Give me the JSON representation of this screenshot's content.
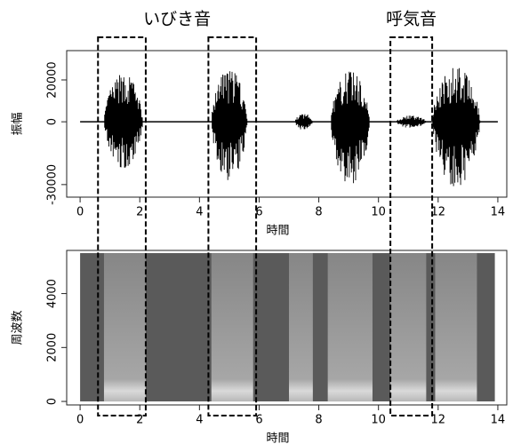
{
  "chart_data": [
    {
      "type": "waveform",
      "ylabel": "振幅",
      "xlabel": "時間",
      "xlim": [
        -0.45,
        14.3
      ],
      "xticks": [
        0,
        2,
        4,
        6,
        8,
        10,
        12,
        14
      ],
      "ylim": [
        -36000,
        34000
      ],
      "yticks": [
        -30000,
        0,
        20000
      ],
      "color": "#000000",
      "bursts": [
        {
          "start": 0.8,
          "end": 2.1,
          "max": 23000,
          "min": -22000
        },
        {
          "start": 4.4,
          "end": 5.6,
          "max": 25000,
          "min": -28000
        },
        {
          "start": 7.2,
          "end": 7.8,
          "max": 4000,
          "min": -4000
        },
        {
          "start": 8.4,
          "end": 9.7,
          "max": 24000,
          "min": -30000
        },
        {
          "start": 10.6,
          "end": 11.6,
          "max": 3000,
          "min": -3000
        },
        {
          "start": 11.8,
          "end": 13.4,
          "max": 26000,
          "min": -31000
        }
      ]
    },
    {
      "type": "spectrogram",
      "ylabel": "周波数",
      "xlabel": "時間",
      "xlim": [
        -0.45,
        14.3
      ],
      "xticks": [
        0,
        2,
        4,
        6,
        8,
        10,
        12,
        14
      ],
      "ylim": [
        -130,
        5600
      ],
      "yticks": [
        0,
        2000,
        4000
      ],
      "extent": {
        "x": [
          0,
          13.9
        ],
        "y": [
          0,
          5500
        ]
      },
      "color": "#5a5a5a",
      "bands": [
        {
          "start": 0.8,
          "end": 2.2
        },
        {
          "start": 4.4,
          "end": 5.8
        },
        {
          "start": 7.0,
          "end": 7.8
        },
        {
          "start": 8.3,
          "end": 9.8
        },
        {
          "start": 10.4,
          "end": 11.6
        },
        {
          "start": 11.9,
          "end": 13.3
        }
      ]
    }
  ],
  "annotations": {
    "labels": [
      "いびき音",
      "呼気音"
    ],
    "regions": [
      [
        0.6,
        2.2
      ],
      [
        4.3,
        5.9
      ],
      [
        10.4,
        11.8
      ]
    ]
  }
}
